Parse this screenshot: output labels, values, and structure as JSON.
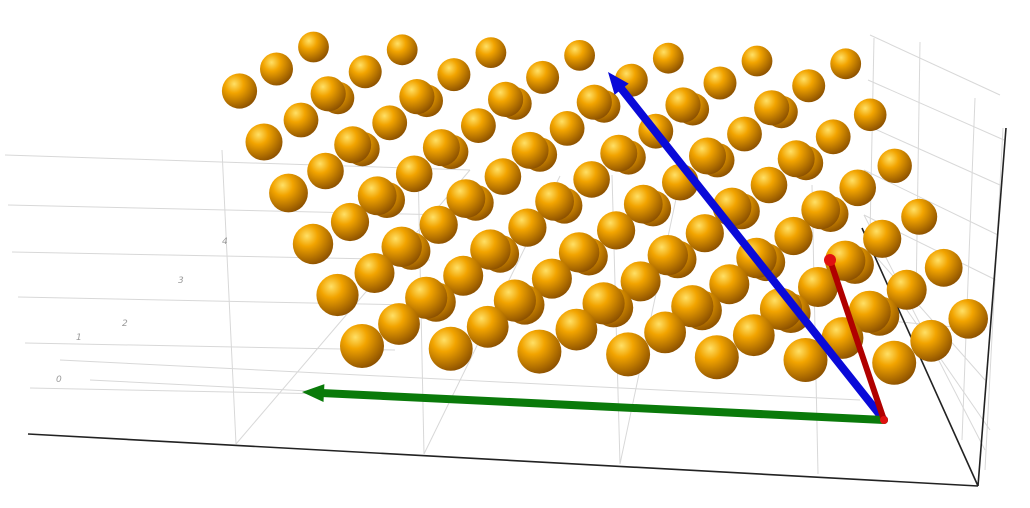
{
  "scene": {
    "type": "3d-crystal-lattice",
    "background": "#ffffff",
    "atom_color": "#f0a000",
    "atom_highlight": "#ffd84a",
    "atom_shadow": "#9a5a00",
    "lattice": {
      "rows": 6,
      "columns": 7,
      "layers": 3
    },
    "vectors": [
      {
        "name": "a-vector",
        "color": "#0a0ad8"
      },
      {
        "name": "b-vector",
        "color": "#0a7a0a"
      },
      {
        "name": "c-vector",
        "color": "#b00000"
      }
    ],
    "grid": {
      "visible": true,
      "color": "#d8d8d8"
    },
    "axis_color": "#222222"
  },
  "tick_labels": {
    "t0": "0",
    "t1": "1",
    "t2": "2",
    "t3": "3",
    "t4": "4"
  }
}
